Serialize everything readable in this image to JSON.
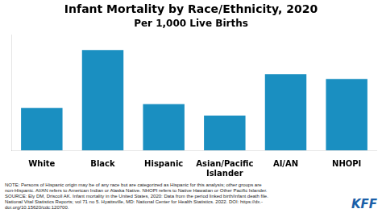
{
  "chart_data": {
    "type": "bar",
    "title": "Infant Mortality by Race/Ethnicity, 2020",
    "subtitle": "Per 1,000 Live Births",
    "categories": [
      "White",
      "Black",
      "Hispanic",
      "Asian/Pacific\nIslander",
      "AI/AN",
      "NHOPI"
    ],
    "values": [
      4.4,
      10.4,
      4.8,
      3.6,
      7.9,
      7.4
    ],
    "color": "#1a8fc1",
    "ylim": [
      0,
      12
    ],
    "grid": false,
    "tick_labels": "x",
    "note": "NOTE: Persons of Hispanic origin may be of any race but are categorized as Hispanic for this analysis; other groups are\nnon-Hispanic. AI/AN refers to American Indian or Alaska Native. NHOPI refers to Native Hawaiian or Other Pacific Islander.\nSOURCE: Ely DM, Driscoll AK. Infant mortality in the United States, 2020: Data from the period linked birth/infant death file.\nNational Vital Statistics Reports; vol 71 no 5. Hyattsville, MD: National Center for Health Statistics. 2022. DOI: https://dx.-\ndoi.org/10.15620/cdc:120700.",
    "annotations": [
      {
        "text": "KFF",
        "color": "#1a5fa8"
      }
    ]
  }
}
